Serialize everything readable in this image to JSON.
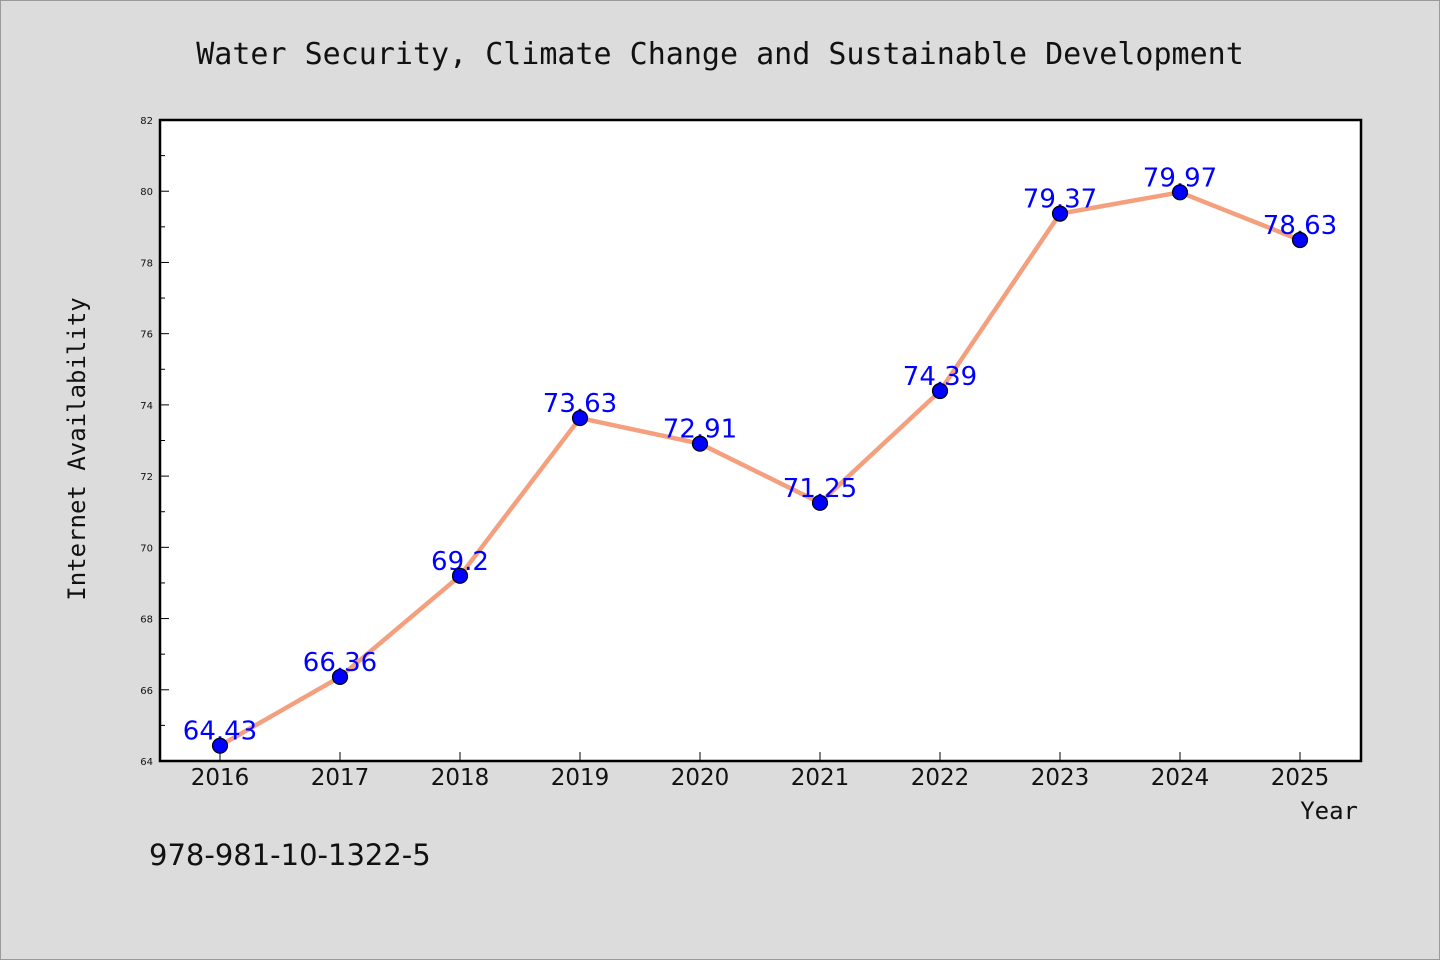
{
  "chart_data": {
    "type": "line",
    "title": "Water Security, Climate Change and Sustainable Development",
    "xlabel": "Year",
    "ylabel": "Internet Availability",
    "categories": [
      "2016",
      "2017",
      "2018",
      "2019",
      "2020",
      "2021",
      "2022",
      "2023",
      "2024",
      "2025"
    ],
    "series": [
      {
        "values": [
          64.43,
          66.36,
          69.2,
          73.63,
          72.91,
          71.25,
          74.39,
          79.37,
          79.97,
          78.63
        ],
        "labels": [
          "64.43",
          "66.36",
          "69.2",
          "73.63",
          "72.91",
          "71.25",
          "74.39",
          "79.37",
          "79.97",
          "78.63"
        ],
        "line_color": "#f4a07e",
        "marker_color": "#0000ff"
      }
    ],
    "ylim": [
      64,
      82
    ],
    "yticks": [
      "64",
      "66",
      "68",
      "70",
      "72",
      "74",
      "76",
      "78",
      "80",
      "82"
    ],
    "grid": false,
    "legend": "none"
  },
  "footer": {
    "isbn": "978-981-10-1322-5"
  }
}
